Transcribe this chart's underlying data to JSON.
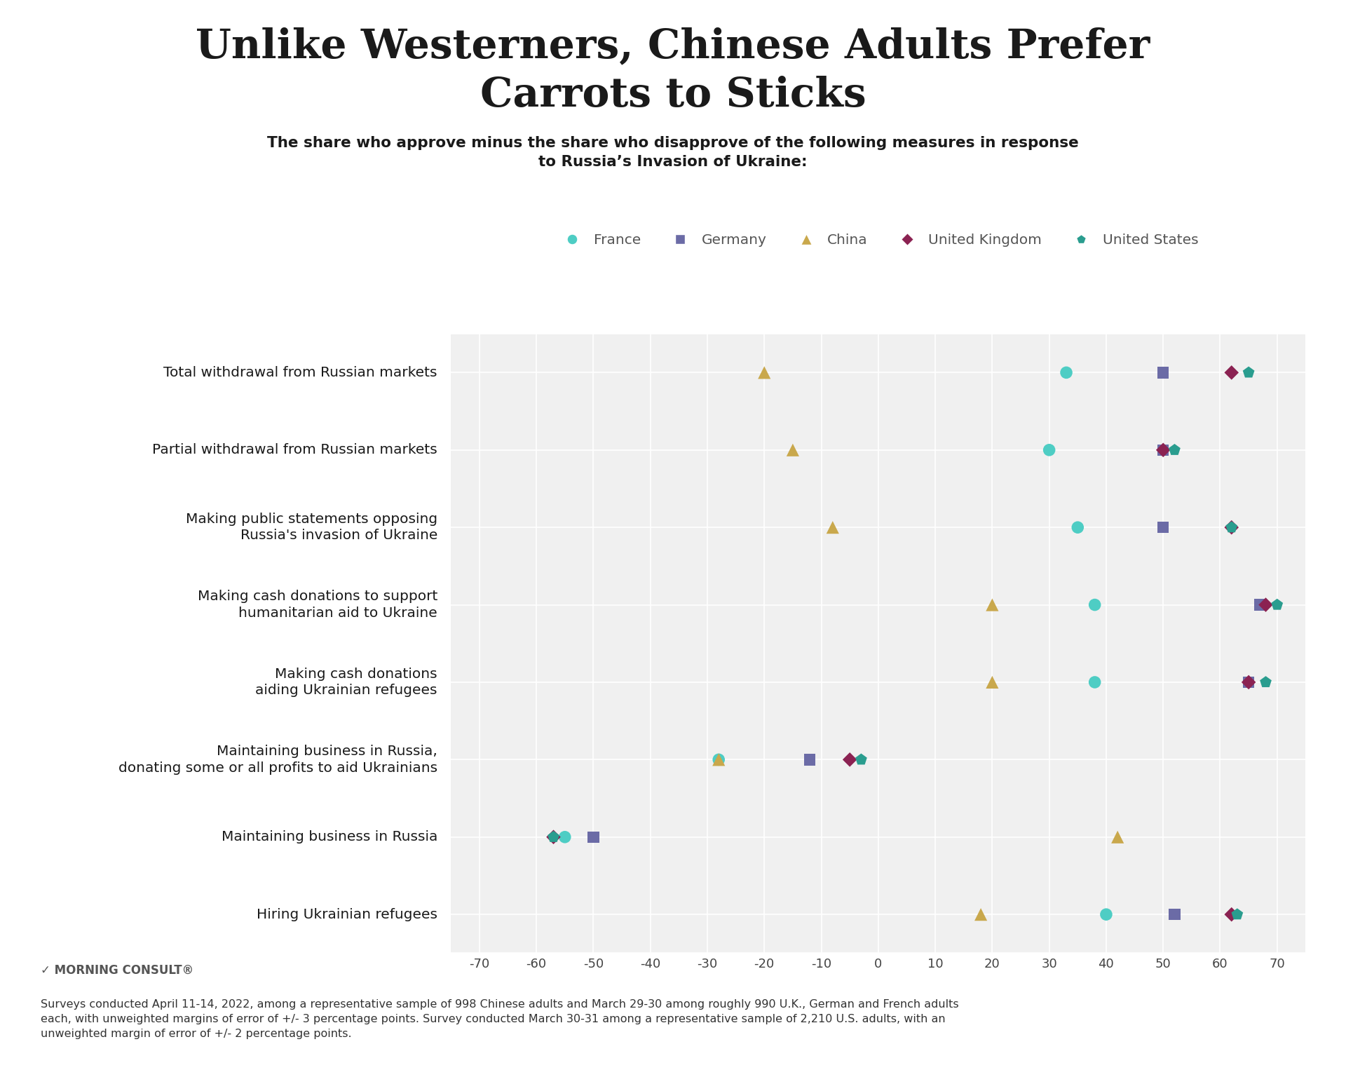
{
  "title": "Unlike Westerners, Chinese Adults Prefer\nCarrots to Sticks",
  "subtitle": "The share who approve minus the share who disapprove of the following measures in response\nto Russia’s Invasion of Ukraine:",
  "title_color": "#1a1a1a",
  "subtitle_color": "#1a1a1a",
  "background_color": "#ffffff",
  "top_bar_color": "#2ec4c4",
  "categories": [
    "Total withdrawal from Russian markets",
    "Partial withdrawal from Russian markets",
    "Making public statements opposing\nRussia's invasion of Ukraine",
    "Making cash donations to support\nhumanitarian aid to Ukraine",
    "Making cash donations\naiding Ukrainian refugees",
    "Maintaining business in Russia,\ndonating some or all profits to aid Ukrainians",
    "Maintaining business in Russia",
    "Hiring Ukrainian refugees"
  ],
  "countries": [
    "France",
    "Germany",
    "China",
    "United Kingdom",
    "United States"
  ],
  "country_colors": [
    "#4ecdc4",
    "#6b6ba6",
    "#c9a84c",
    "#8b2252",
    "#2a9d8f"
  ],
  "country_markers": [
    "o",
    "s",
    "^",
    "D",
    "p"
  ],
  "country_marker_sizes": [
    160,
    140,
    170,
    110,
    160
  ],
  "plot_data": {
    "France": [
      33,
      30,
      35,
      38,
      38,
      -28,
      -55,
      40
    ],
    "Germany": [
      50,
      50,
      50,
      67,
      65,
      -12,
      -50,
      52
    ],
    "China": [
      -20,
      -15,
      -8,
      20,
      20,
      -28,
      42,
      18
    ],
    "United Kingdom": [
      62,
      50,
      62,
      68,
      65,
      -5,
      -57,
      62
    ],
    "United States": [
      65,
      52,
      62,
      70,
      68,
      -3,
      -57,
      63
    ]
  },
  "xlim": [
    -75,
    75
  ],
  "xticks": [
    -70,
    -60,
    -50,
    -40,
    -30,
    -20,
    -10,
    0,
    10,
    20,
    30,
    40,
    50,
    60,
    70
  ],
  "grid_color": "#d0d0d0",
  "plot_bg_color": "#f0f0f0",
  "footnote_line1": "Surveys conducted April 11-14, 2022, among a representative sample of 998 Chinese adults and March 29-30 among roughly 990 U.K., German and French adults",
  "footnote_line2": "each, with unweighted margins of error of +/- 3 percentage points. Survey conducted March 30-31 among a representative sample of 2,210 U.S. adults, with an",
  "footnote_line3": "unweighted margin of error of +/- 2 percentage points.",
  "logo_text": "✓ MORNING CONSULT®"
}
